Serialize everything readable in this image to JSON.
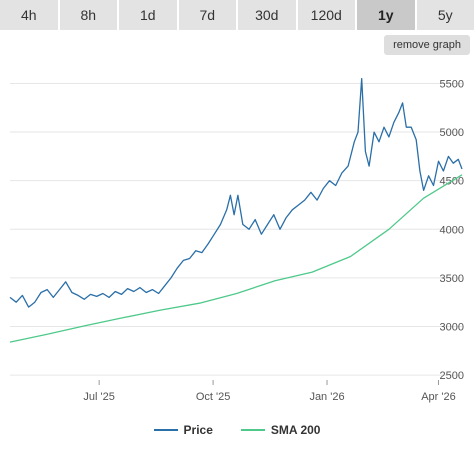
{
  "tabs": [
    {
      "label": "4h",
      "active": false
    },
    {
      "label": "8h",
      "active": false
    },
    {
      "label": "1d",
      "active": false
    },
    {
      "label": "7d",
      "active": false
    },
    {
      "label": "30d",
      "active": false
    },
    {
      "label": "120d",
      "active": false
    },
    {
      "label": "1y",
      "active": true
    },
    {
      "label": "5y",
      "active": false
    }
  ],
  "remove_graph_label": "remove graph",
  "colors": {
    "price": "#2a6fa8",
    "sma": "#4ec98a",
    "grid": "#e6e6e6"
  },
  "chart_data": {
    "type": "line",
    "x_ticks": [
      "Jul '25",
      "Oct '25",
      "Jan '26",
      "Apr '26"
    ],
    "y_ticks": [
      2500,
      3000,
      3500,
      4000,
      4500,
      5000,
      5500
    ],
    "ylim": [
      2450,
      5700
    ],
    "x_date_range": [
      "2025-04-20",
      "2026-04-20"
    ],
    "x_tick_dates": [
      "2025-07-01",
      "2025-10-01",
      "2026-01-01",
      "2026-04-01"
    ],
    "grid": true,
    "legend_position": "bottom",
    "series": [
      {
        "name": "Price",
        "points": [
          [
            "2025-04-20",
            3300
          ],
          [
            "2025-04-25",
            3250
          ],
          [
            "2025-04-30",
            3320
          ],
          [
            "2025-05-05",
            3200
          ],
          [
            "2025-05-10",
            3250
          ],
          [
            "2025-05-15",
            3350
          ],
          [
            "2025-05-20",
            3380
          ],
          [
            "2025-05-25",
            3300
          ],
          [
            "2025-05-30",
            3380
          ],
          [
            "2025-06-04",
            3460
          ],
          [
            "2025-06-09",
            3350
          ],
          [
            "2025-06-14",
            3320
          ],
          [
            "2025-06-19",
            3280
          ],
          [
            "2025-06-24",
            3330
          ],
          [
            "2025-06-29",
            3310
          ],
          [
            "2025-07-04",
            3340
          ],
          [
            "2025-07-09",
            3300
          ],
          [
            "2025-07-14",
            3360
          ],
          [
            "2025-07-19",
            3330
          ],
          [
            "2025-07-24",
            3390
          ],
          [
            "2025-07-29",
            3360
          ],
          [
            "2025-08-03",
            3400
          ],
          [
            "2025-08-08",
            3350
          ],
          [
            "2025-08-13",
            3380
          ],
          [
            "2025-08-18",
            3340
          ],
          [
            "2025-08-23",
            3420
          ],
          [
            "2025-08-28",
            3500
          ],
          [
            "2025-09-02",
            3600
          ],
          [
            "2025-09-07",
            3680
          ],
          [
            "2025-09-12",
            3700
          ],
          [
            "2025-09-17",
            3780
          ],
          [
            "2025-09-22",
            3760
          ],
          [
            "2025-09-27",
            3850
          ],
          [
            "2025-10-02",
            3950
          ],
          [
            "2025-10-07",
            4050
          ],
          [
            "2025-10-12",
            4200
          ],
          [
            "2025-10-15",
            4350
          ],
          [
            "2025-10-18",
            4150
          ],
          [
            "2025-10-21",
            4350
          ],
          [
            "2025-10-25",
            4050
          ],
          [
            "2025-10-30",
            4000
          ],
          [
            "2025-11-04",
            4100
          ],
          [
            "2025-11-09",
            3950
          ],
          [
            "2025-11-14",
            4050
          ],
          [
            "2025-11-19",
            4150
          ],
          [
            "2025-11-24",
            4000
          ],
          [
            "2025-11-29",
            4120
          ],
          [
            "2025-12-04",
            4200
          ],
          [
            "2025-12-09",
            4250
          ],
          [
            "2025-12-14",
            4300
          ],
          [
            "2025-12-19",
            4380
          ],
          [
            "2025-12-24",
            4300
          ],
          [
            "2025-12-29",
            4420
          ],
          [
            "2026-01-03",
            4500
          ],
          [
            "2026-01-08",
            4450
          ],
          [
            "2026-01-13",
            4580
          ],
          [
            "2026-01-18",
            4650
          ],
          [
            "2026-01-23",
            4900
          ],
          [
            "2026-01-26",
            5000
          ],
          [
            "2026-01-29",
            5550
          ],
          [
            "2026-02-01",
            4800
          ],
          [
            "2026-02-04",
            4650
          ],
          [
            "2026-02-08",
            5000
          ],
          [
            "2026-02-12",
            4900
          ],
          [
            "2026-02-16",
            5050
          ],
          [
            "2026-02-20",
            4950
          ],
          [
            "2026-02-24",
            5100
          ],
          [
            "2026-02-28",
            5200
          ],
          [
            "2026-03-03",
            5300
          ],
          [
            "2026-03-06",
            5050
          ],
          [
            "2026-03-10",
            5050
          ],
          [
            "2026-03-14",
            4920
          ],
          [
            "2026-03-17",
            4600
          ],
          [
            "2026-03-20",
            4400
          ],
          [
            "2026-03-24",
            4550
          ],
          [
            "2026-03-28",
            4450
          ],
          [
            "2026-04-01",
            4700
          ],
          [
            "2026-04-05",
            4600
          ],
          [
            "2026-04-09",
            4750
          ],
          [
            "2026-04-13",
            4680
          ],
          [
            "2026-04-17",
            4720
          ],
          [
            "2026-04-20",
            4620
          ]
        ]
      },
      {
        "name": "SMA 200",
        "points": [
          [
            "2025-04-20",
            2840
          ],
          [
            "2025-05-20",
            2920
          ],
          [
            "2025-06-20",
            3010
          ],
          [
            "2025-07-20",
            3090
          ],
          [
            "2025-08-20",
            3170
          ],
          [
            "2025-09-20",
            3240
          ],
          [
            "2025-10-20",
            3340
          ],
          [
            "2025-11-20",
            3470
          ],
          [
            "2025-12-20",
            3560
          ],
          [
            "2026-01-20",
            3720
          ],
          [
            "2026-02-20",
            4000
          ],
          [
            "2026-03-20",
            4320
          ],
          [
            "2026-04-20",
            4560
          ]
        ]
      }
    ]
  }
}
